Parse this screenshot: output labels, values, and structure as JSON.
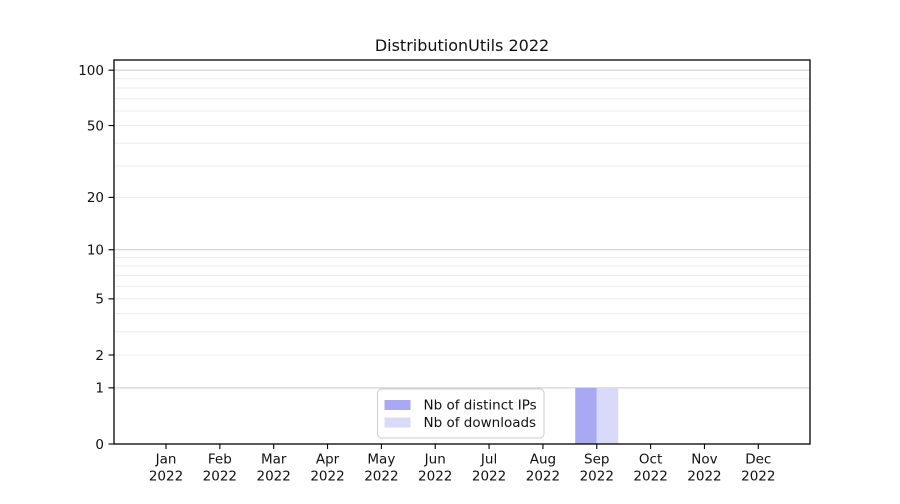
{
  "chart_data": {
    "type": "bar",
    "title": "DistributionUtils 2022",
    "categories": [
      "Jan 2022",
      "Feb 2022",
      "Mar 2022",
      "Apr 2022",
      "May 2022",
      "Jun 2022",
      "Jul 2022",
      "Aug 2022",
      "Sep 2022",
      "Oct 2022",
      "Nov 2022",
      "Dec 2022"
    ],
    "series": [
      {
        "name": "Nb of distinct IPs",
        "color": "#a8a8f3",
        "values": [
          0,
          0,
          0,
          0,
          0,
          0,
          0,
          0,
          1,
          0,
          0,
          0
        ]
      },
      {
        "name": "Nb of downloads",
        "color": "#d9d9fa",
        "values": [
          0,
          0,
          0,
          0,
          0,
          0,
          0,
          0,
          1,
          0,
          0,
          0
        ]
      }
    ],
    "xlabel": "",
    "ylabel": "",
    "y_axis": {
      "scale": "log1p",
      "ticks": [
        0,
        1,
        2,
        5,
        10,
        20,
        50,
        100
      ],
      "major_gridlines": [
        1,
        10,
        100
      ],
      "minor_gridlines": [
        2,
        3,
        4,
        5,
        6,
        7,
        8,
        9,
        20,
        30,
        40,
        50,
        60,
        70,
        80,
        90
      ],
      "ylim": [
        0,
        113
      ]
    },
    "legend": {
      "entries": [
        "Nb of distinct IPs",
        "Nb of downloads"
      ],
      "position": "lower center"
    },
    "grid": "horizontal-only",
    "colors": {
      "background": "#ffffff",
      "axis_frame": "#000000",
      "text": "#111111",
      "major_gridline": "#c9c9c9",
      "minor_gridline": "#ececec",
      "legend_border": "#cccccc",
      "legend_background": "#ffffff"
    }
  }
}
